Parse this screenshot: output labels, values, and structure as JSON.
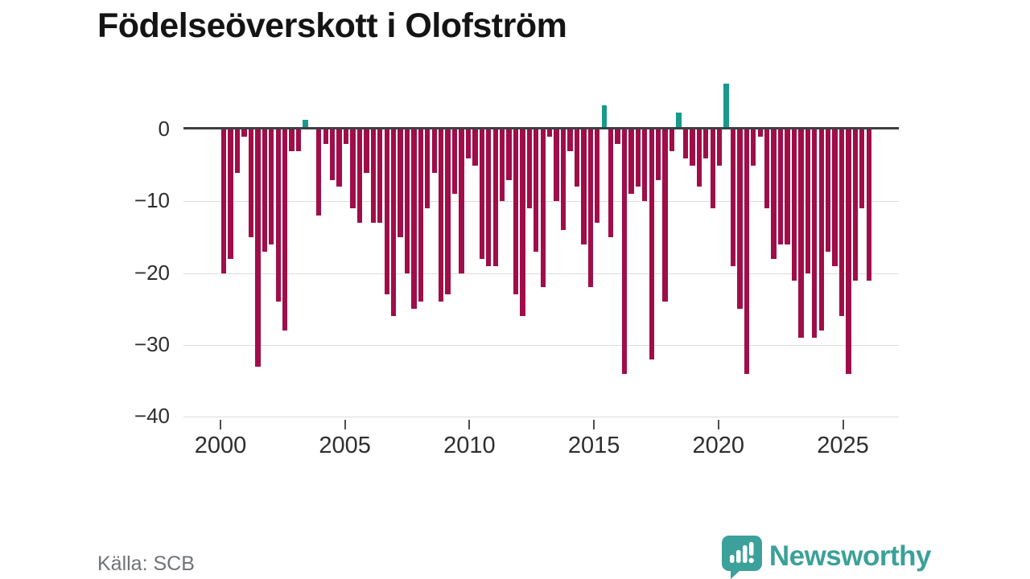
{
  "header": {
    "title": "Födelseöverskott i Olofström"
  },
  "footer": {
    "source": "Källa: SCB",
    "brand": "Newsworthy"
  },
  "colors": {
    "negative_bar": "#a00e49",
    "positive_bar": "#17998c",
    "baseline": "#3c4043",
    "gridline": "#dcdcdc",
    "brand_teal": "#3ba19a"
  },
  "chart_data": {
    "type": "bar",
    "title": "Födelseöverskott i Olofström",
    "xlabel": "",
    "ylabel": "",
    "x_range_years": [
      2000,
      2026
    ],
    "ylim": [
      -40,
      7
    ],
    "grid": "horizontal",
    "x_ticks": [
      {
        "label": "2000",
        "year": 2000
      },
      {
        "label": "2005",
        "year": 2005
      },
      {
        "label": "2010",
        "year": 2010
      },
      {
        "label": "2015",
        "year": 2015
      },
      {
        "label": "2020",
        "year": 2020
      },
      {
        "label": "2025",
        "year": 2025
      }
    ],
    "y_ticks": [
      {
        "label": "0",
        "value": 0
      },
      {
        "label": "−10",
        "value": -10
      },
      {
        "label": "−20",
        "value": -20
      },
      {
        "label": "−30",
        "value": -30
      },
      {
        "label": "−40",
        "value": -40
      }
    ],
    "values": [
      -20,
      -18,
      -6,
      -1,
      -15,
      -33,
      -17,
      -16,
      -24,
      -28,
      -3,
      -3,
      1,
      0,
      -12,
      -2,
      -7,
      -8,
      -2,
      -11,
      -13,
      -6,
      -13,
      -13,
      -23,
      -26,
      -15,
      -20,
      -25,
      -24,
      -11,
      -6,
      -24,
      -23,
      -9,
      -20,
      -4,
      -5,
      -18,
      -19,
      -19,
      -10,
      -7,
      -23,
      -26,
      -11,
      -17,
      -22,
      -1,
      -10,
      -14,
      -3,
      -8,
      -16,
      -22,
      -13,
      3,
      -15,
      -2,
      -34,
      -9,
      -8,
      -10,
      -32,
      -7,
      -24,
      -3,
      2,
      -4,
      -5,
      -8,
      -4,
      -11,
      -5,
      6,
      -19,
      -25,
      -34,
      -5,
      -1,
      -11,
      -18,
      -16,
      -16,
      -21,
      -29,
      -20,
      -29,
      -28,
      -17,
      -19,
      -26,
      -34,
      -21,
      -11,
      -21
    ]
  }
}
